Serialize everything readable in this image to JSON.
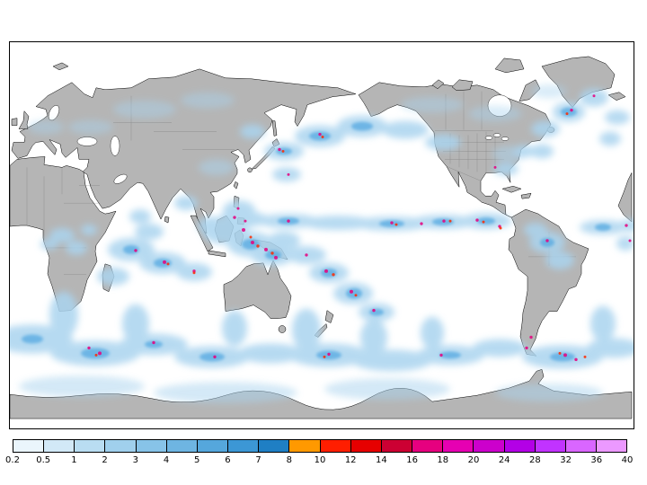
{
  "figure": {
    "background_color": "#ffffff",
    "map": {
      "description": "global-precipitation-map-pacific-centered",
      "land_color": "#b5b5b5",
      "ocean_color": "#ffffff",
      "coastline_color": "#000000",
      "precip_light_color": "#aad4ef",
      "precip_medium_color": "#4fa6e0",
      "precip_heavy_color": "#e6007f",
      "precip_extreme_color": "#ff2a00"
    },
    "colorbar": {
      "orientation": "horizontal",
      "labels": [
        "0.2",
        "0.5",
        "1",
        "2",
        "3",
        "4",
        "5",
        "6",
        "7",
        "8",
        "10",
        "12",
        "14",
        "16",
        "18",
        "20",
        "24",
        "28",
        "32",
        "36",
        "40"
      ],
      "segment_colors": [
        "#eaf5fc",
        "#d2e9f7",
        "#b9ddf2",
        "#a0d0ed",
        "#87c3e8",
        "#6eb5e2",
        "#55a7dc",
        "#3c97d5",
        "#1f7fc4",
        "#ff9900",
        "#ff1e00",
        "#e60000",
        "#cc0033",
        "#e6007f",
        "#e600b2",
        "#cc00cc",
        "#b300e6",
        "#c133ff",
        "#d966ff",
        "#ec99ff"
      ]
    }
  }
}
